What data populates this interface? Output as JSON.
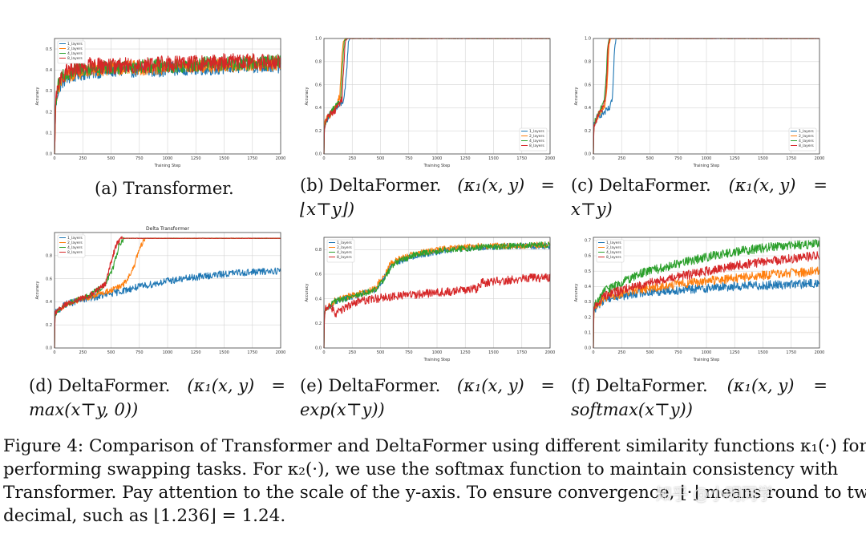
{
  "colors": {
    "s1": "#1f77b4",
    "s2": "#ff7f0e",
    "s4": "#2ca02c",
    "s8": "#d62728"
  },
  "chart_data": [
    {
      "id": "a",
      "type": "line",
      "title": "",
      "xlabel": "Training Step",
      "ylabel": "Accuracy",
      "xlim": [
        0,
        2000
      ],
      "ylim": [
        0,
        0.55
      ],
      "xticks": [
        "0",
        "250",
        "500",
        "750",
        "1000",
        "1250",
        "1500",
        "1750",
        "2000"
      ],
      "yticks": [
        "0.0",
        "0.1",
        "0.2",
        "0.3",
        "0.4",
        "0.5"
      ],
      "legend": "top-left",
      "grid": true,
      "series": [
        {
          "name": "1_layers",
          "x": [
            0,
            10,
            30,
            60,
            100,
            200,
            300,
            500,
            700,
            900,
            1100,
            1300,
            1500,
            1700,
            2000
          ],
          "y": [
            0,
            0.22,
            0.3,
            0.34,
            0.36,
            0.38,
            0.39,
            0.4,
            0.4,
            0.4,
            0.41,
            0.41,
            0.41,
            0.42,
            0.42
          ],
          "noise": 0.035
        },
        {
          "name": "2_layers",
          "x": [
            0,
            10,
            30,
            60,
            100,
            200,
            300,
            500,
            700,
            900,
            1100,
            1300,
            1500,
            1700,
            2000
          ],
          "y": [
            0,
            0.23,
            0.31,
            0.35,
            0.37,
            0.39,
            0.4,
            0.41,
            0.41,
            0.41,
            0.42,
            0.42,
            0.42,
            0.43,
            0.43
          ],
          "noise": 0.035
        },
        {
          "name": "4_layers",
          "x": [
            0,
            10,
            30,
            60,
            100,
            200,
            300,
            500,
            700,
            900,
            1100,
            1300,
            1500,
            1700,
            2000
          ],
          "y": [
            0,
            0.24,
            0.32,
            0.36,
            0.38,
            0.4,
            0.41,
            0.41,
            0.42,
            0.42,
            0.42,
            0.43,
            0.43,
            0.43,
            0.44
          ],
          "noise": 0.035
        },
        {
          "name": "8_layers",
          "x": [
            0,
            10,
            30,
            60,
            100,
            200,
            300,
            500,
            700,
            900,
            1100,
            1300,
            1500,
            1700,
            2000
          ],
          "y": [
            0,
            0.25,
            0.33,
            0.37,
            0.39,
            0.41,
            0.42,
            0.42,
            0.42,
            0.43,
            0.43,
            0.43,
            0.44,
            0.44,
            0.44
          ],
          "noise": 0.04
        }
      ]
    },
    {
      "id": "b",
      "type": "line",
      "title": "",
      "xlabel": "Training Step",
      "ylabel": "Accuracy",
      "xlim": [
        0,
        2000
      ],
      "ylim": [
        0,
        1.0
      ],
      "xticks": [
        "0",
        "250",
        "500",
        "750",
        "1000",
        "1250",
        "1500",
        "1750",
        "2000"
      ],
      "yticks": [
        "0.0",
        "0.2",
        "0.4",
        "0.6",
        "0.8",
        "1.0"
      ],
      "legend": "bottom-right",
      "grid": true,
      "series": [
        {
          "name": "1_layers",
          "x": [
            0,
            5,
            40,
            100,
            150,
            180,
            200,
            215,
            230,
            2000
          ],
          "y": [
            0,
            0.25,
            0.33,
            0.38,
            0.43,
            0.48,
            0.7,
            0.97,
            1.0,
            1.0
          ],
          "noise": 0.03
        },
        {
          "name": "2_layers",
          "x": [
            0,
            5,
            40,
            100,
            140,
            155,
            170,
            190,
            2000
          ],
          "y": [
            0,
            0.26,
            0.33,
            0.4,
            0.5,
            0.78,
            0.97,
            1.0,
            1.0
          ],
          "noise": 0.03
        },
        {
          "name": "4_layers",
          "x": [
            0,
            5,
            40,
            100,
            150,
            165,
            180,
            200,
            2000
          ],
          "y": [
            0,
            0.26,
            0.34,
            0.4,
            0.48,
            0.8,
            0.98,
            1.0,
            1.0
          ],
          "noise": 0.03
        },
        {
          "name": "8_layers",
          "x": [
            0,
            5,
            40,
            100,
            160,
            175,
            190,
            210,
            2000
          ],
          "y": [
            0,
            0.25,
            0.33,
            0.38,
            0.47,
            0.78,
            0.98,
            1.0,
            1.0
          ],
          "noise": 0.03
        }
      ]
    },
    {
      "id": "c",
      "type": "line",
      "title": "",
      "xlabel": "Training Step",
      "ylabel": "Accuracy",
      "xlim": [
        0,
        2000
      ],
      "ylim": [
        0,
        1.0
      ],
      "xticks": [
        "0",
        "250",
        "500",
        "750",
        "1000",
        "1250",
        "1500",
        "1750",
        "2000"
      ],
      "yticks": [
        "0.0",
        "0.2",
        "0.4",
        "0.6",
        "0.8",
        "1.0"
      ],
      "legend": "bottom-right",
      "grid": true,
      "series": [
        {
          "name": "1_layers",
          "x": [
            0,
            5,
            40,
            100,
            150,
            170,
            185,
            200,
            2000
          ],
          "y": [
            0,
            0.25,
            0.33,
            0.36,
            0.4,
            0.5,
            0.85,
            1.0,
            1.0
          ],
          "noise": 0.03
        },
        {
          "name": "2_layers",
          "x": [
            0,
            5,
            40,
            100,
            120,
            135,
            150,
            2000
          ],
          "y": [
            0,
            0.26,
            0.33,
            0.42,
            0.55,
            0.9,
            1.0,
            1.0
          ],
          "noise": 0.03
        },
        {
          "name": "4_layers",
          "x": [
            0,
            5,
            40,
            90,
            110,
            125,
            140,
            2000
          ],
          "y": [
            0,
            0.26,
            0.34,
            0.45,
            0.6,
            0.92,
            1.0,
            1.0
          ],
          "noise": 0.03
        },
        {
          "name": "8_layers",
          "x": [
            0,
            5,
            40,
            100,
            115,
            130,
            145,
            2000
          ],
          "y": [
            0,
            0.25,
            0.33,
            0.44,
            0.6,
            0.92,
            1.0,
            1.0
          ],
          "noise": 0.03
        }
      ]
    },
    {
      "id": "d",
      "type": "line",
      "title": "Delta Transformer",
      "xlabel": "",
      "ylabel": "Accuracy",
      "xlim": [
        0,
        2000
      ],
      "ylim": [
        0,
        1.0
      ],
      "xticks": [
        "0",
        "250",
        "500",
        "750",
        "1000",
        "1250",
        "1500",
        "1750",
        "2000"
      ],
      "yticks": [
        "0.0",
        "0.2",
        "0.4",
        "0.6",
        "0.8"
      ],
      "legend": "top-left",
      "grid": true,
      "series": [
        {
          "name": "1_layers",
          "x": [
            0,
            5,
            100,
            300,
            500,
            700,
            1000,
            1300,
            1600,
            1800,
            2000
          ],
          "y": [
            0,
            0.3,
            0.38,
            0.43,
            0.47,
            0.52,
            0.58,
            0.62,
            0.65,
            0.66,
            0.67
          ],
          "noise": 0.03
        },
        {
          "name": "2_layers",
          "x": [
            0,
            5,
            100,
            300,
            500,
            600,
            650,
            700,
            750,
            800,
            2000
          ],
          "y": [
            0,
            0.3,
            0.38,
            0.44,
            0.5,
            0.54,
            0.6,
            0.7,
            0.85,
            0.95,
            0.95
          ],
          "noise": 0.025
        },
        {
          "name": "4_layers",
          "x": [
            0,
            5,
            100,
            300,
            450,
            520,
            570,
            620,
            2000
          ],
          "y": [
            0,
            0.3,
            0.38,
            0.45,
            0.55,
            0.7,
            0.88,
            0.95,
            0.95
          ],
          "noise": 0.025
        },
        {
          "name": "8_layers",
          "x": [
            0,
            5,
            100,
            300,
            450,
            500,
            550,
            600,
            2000
          ],
          "y": [
            0,
            0.3,
            0.38,
            0.45,
            0.55,
            0.75,
            0.9,
            0.95,
            0.95
          ],
          "noise": 0.025
        }
      ]
    },
    {
      "id": "e",
      "type": "line",
      "title": "",
      "xlabel": "Training Step",
      "ylabel": "Accuracy",
      "xlim": [
        0,
        2000
      ],
      "ylim": [
        0,
        0.9
      ],
      "xticks": [
        "0",
        "250",
        "500",
        "750",
        "1000",
        "1250",
        "1500",
        "1750",
        "2000"
      ],
      "yticks": [
        "0.0",
        "0.2",
        "0.4",
        "0.6",
        "0.8"
      ],
      "legend": "top-left",
      "grid": true,
      "series": [
        {
          "name": "1_layers",
          "x": [
            0,
            5,
            100,
            300,
            450,
            520,
            600,
            800,
            1100,
            1400,
            1700,
            2000
          ],
          "y": [
            0,
            0.3,
            0.38,
            0.43,
            0.47,
            0.55,
            0.68,
            0.75,
            0.8,
            0.82,
            0.83,
            0.83
          ],
          "noise": 0.025
        },
        {
          "name": "2_layers",
          "x": [
            0,
            5,
            100,
            300,
            450,
            520,
            600,
            800,
            1100,
            1400,
            1700,
            2000
          ],
          "y": [
            0,
            0.3,
            0.39,
            0.44,
            0.48,
            0.58,
            0.7,
            0.77,
            0.81,
            0.83,
            0.83,
            0.84
          ],
          "noise": 0.025
        },
        {
          "name": "4_layers",
          "x": [
            0,
            5,
            100,
            300,
            450,
            530,
            620,
            800,
            1100,
            1400,
            1700,
            2000
          ],
          "y": [
            0,
            0.3,
            0.38,
            0.43,
            0.47,
            0.56,
            0.69,
            0.76,
            0.8,
            0.82,
            0.83,
            0.84
          ],
          "noise": 0.025
        },
        {
          "name": "8_layers",
          "x": [
            0,
            5,
            50,
            100,
            150,
            300,
            600,
            900,
            1200,
            1350,
            1400,
            1600,
            1800,
            2000
          ],
          "y": [
            0,
            0.3,
            0.35,
            0.28,
            0.3,
            0.38,
            0.42,
            0.44,
            0.47,
            0.48,
            0.53,
            0.55,
            0.57,
            0.57
          ],
          "noise": 0.035
        }
      ]
    },
    {
      "id": "f",
      "type": "line",
      "title": "",
      "xlabel": "Training Step",
      "ylabel": "Accuracy",
      "xlim": [
        0,
        2000
      ],
      "ylim": [
        0,
        0.72
      ],
      "xticks": [
        "0",
        "250",
        "500",
        "750",
        "1000",
        "1250",
        "1500",
        "1750",
        "2000"
      ],
      "yticks": [
        "0.0",
        "0.1",
        "0.2",
        "0.3",
        "0.4",
        "0.5",
        "0.6",
        "0.7"
      ],
      "legend": "top-left",
      "grid": true,
      "series": [
        {
          "name": "1_layers",
          "x": [
            0,
            5,
            100,
            400,
            800,
            1200,
            1600,
            2000
          ],
          "y": [
            0,
            0.25,
            0.32,
            0.36,
            0.38,
            0.4,
            0.41,
            0.42
          ],
          "noise": 0.03
        },
        {
          "name": "2_layers",
          "x": [
            0,
            5,
            100,
            400,
            800,
            1200,
            1600,
            2000
          ],
          "y": [
            0,
            0.26,
            0.33,
            0.38,
            0.42,
            0.45,
            0.48,
            0.5
          ],
          "noise": 0.03
        },
        {
          "name": "4_layers",
          "x": [
            0,
            5,
            100,
            400,
            800,
            1200,
            1600,
            2000
          ],
          "y": [
            0,
            0.27,
            0.37,
            0.48,
            0.56,
            0.62,
            0.66,
            0.68
          ],
          "noise": 0.03
        },
        {
          "name": "8_layers",
          "x": [
            0,
            5,
            100,
            400,
            800,
            1200,
            1600,
            2000
          ],
          "y": [
            0,
            0.26,
            0.34,
            0.41,
            0.47,
            0.53,
            0.57,
            0.6
          ],
          "noise": 0.03
        }
      ]
    }
  ],
  "subcaptions": {
    "a": {
      "label": "(a) Transformer."
    },
    "b": {
      "label": "(b) DeltaFormer.",
      "kappa": "(κ₁(x, y)",
      "eq": "=",
      "line2": "⌊x⊤y⌋)"
    },
    "c": {
      "label": "(c) DeltaFormer.",
      "kappa": "(κ₁(x, y)",
      "eq": "=",
      "line2": "x⊤y)"
    },
    "d": {
      "label": "(d) DeltaFormer.",
      "kappa": "(κ₁(x, y)",
      "eq": "=",
      "line2": "max(x⊤y, 0))"
    },
    "e": {
      "label": "(e) DeltaFormer.",
      "kappa": "(κ₁(x, y)",
      "eq": "=",
      "line2": "exp(x⊤y))"
    },
    "f": {
      "label": "(f) DeltaFormer.",
      "kappa": "(κ₁(x, y)",
      "eq": "=",
      "line2": "softmax(x⊤y))"
    }
  },
  "caption": {
    "line1": "Figure 4: Comparison of Transformer and DeltaFormer using different similarity functions κ₁(·) for",
    "line2": "performing swapping tasks. For κ₂(·), we use the softmax function to maintain consistency with",
    "line3": "Transformer. Pay attention to the scale of the y-axis. To ensure convergence, ⌊·⌋ means round to two",
    "line4": "decimal, such as ⌊1.236⌋ = 1.24."
  },
  "watermark": "知乎 @小明同学"
}
